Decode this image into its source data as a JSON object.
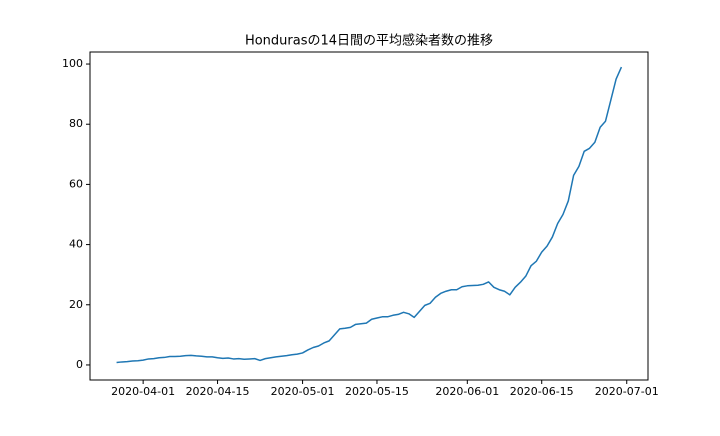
{
  "chart_data": {
    "type": "line",
    "title": "Hondurasの14日間の平均感染者数の推移",
    "x": [
      "2020-03-27",
      "2020-03-28",
      "2020-03-29",
      "2020-03-30",
      "2020-03-31",
      "2020-04-01",
      "2020-04-02",
      "2020-04-03",
      "2020-04-04",
      "2020-04-05",
      "2020-04-06",
      "2020-04-07",
      "2020-04-08",
      "2020-04-09",
      "2020-04-10",
      "2020-04-11",
      "2020-04-12",
      "2020-04-13",
      "2020-04-14",
      "2020-04-15",
      "2020-04-16",
      "2020-04-17",
      "2020-04-18",
      "2020-04-19",
      "2020-04-20",
      "2020-04-21",
      "2020-04-22",
      "2020-04-23",
      "2020-04-24",
      "2020-04-25",
      "2020-04-26",
      "2020-04-27",
      "2020-04-28",
      "2020-04-29",
      "2020-04-30",
      "2020-05-01",
      "2020-05-02",
      "2020-05-03",
      "2020-05-04",
      "2020-05-05",
      "2020-05-06",
      "2020-05-07",
      "2020-05-08",
      "2020-05-09",
      "2020-05-10",
      "2020-05-11",
      "2020-05-12",
      "2020-05-13",
      "2020-05-14",
      "2020-05-15",
      "2020-05-16",
      "2020-05-17",
      "2020-05-18",
      "2020-05-19",
      "2020-05-20",
      "2020-05-21",
      "2020-05-22",
      "2020-05-23",
      "2020-05-24",
      "2020-05-25",
      "2020-05-26",
      "2020-05-27",
      "2020-05-28",
      "2020-05-29",
      "2020-05-30",
      "2020-05-31",
      "2020-06-01",
      "2020-06-02",
      "2020-06-03",
      "2020-06-04",
      "2020-06-05",
      "2020-06-06",
      "2020-06-07",
      "2020-06-08",
      "2020-06-09",
      "2020-06-10",
      "2020-06-11",
      "2020-06-12",
      "2020-06-13",
      "2020-06-14",
      "2020-06-15",
      "2020-06-16",
      "2020-06-17",
      "2020-06-18",
      "2020-06-19",
      "2020-06-20",
      "2020-06-21",
      "2020-06-22",
      "2020-06-23",
      "2020-06-24",
      "2020-06-25",
      "2020-06-26",
      "2020-06-27",
      "2020-06-28",
      "2020-06-29",
      "2020-06-30"
    ],
    "series": [
      {
        "color": "#1f77b4",
        "values": [
          0.8,
          1.0,
          1.1,
          1.3,
          1.4,
          1.6,
          2.0,
          2.1,
          2.4,
          2.5,
          2.8,
          2.8,
          2.9,
          3.1,
          3.2,
          3.0,
          2.9,
          2.7,
          2.7,
          2.4,
          2.2,
          2.3,
          2.0,
          2.1,
          1.9,
          2.0,
          2.1,
          1.5,
          2.1,
          2.4,
          2.7,
          2.9,
          3.1,
          3.4,
          3.6,
          4.0,
          5.0,
          5.8,
          6.3,
          7.3,
          8.0,
          10.0,
          12.0,
          12.2,
          12.5,
          13.5,
          13.7,
          13.9,
          15.2,
          15.6,
          16.0,
          16.0,
          16.5,
          16.8,
          17.5,
          17.0,
          15.8,
          17.8,
          19.8,
          20.5,
          22.5,
          23.8,
          24.5,
          25.0,
          25.0,
          26.0,
          26.3,
          26.4,
          26.5,
          26.8,
          27.6,
          25.8,
          25.0,
          24.5,
          23.3,
          25.8,
          27.5,
          29.5,
          33.0,
          34.5,
          37.5,
          39.5,
          42.5,
          47.0,
          50.0,
          54.5,
          63.0,
          66.0,
          71.0,
          72.0,
          74.0,
          79.0,
          81.0,
          88.0,
          95.0,
          99.0
        ]
      }
    ],
    "xlim": [
      "2020-03-22",
      "2020-07-05"
    ],
    "xticks": [
      "2020-04-01",
      "2020-04-15",
      "2020-05-01",
      "2020-05-15",
      "2020-06-01",
      "2020-06-15",
      "2020-07-01"
    ],
    "ylim": [
      -5,
      104
    ],
    "yticks": [
      0,
      20,
      40,
      60,
      80,
      100
    ]
  }
}
